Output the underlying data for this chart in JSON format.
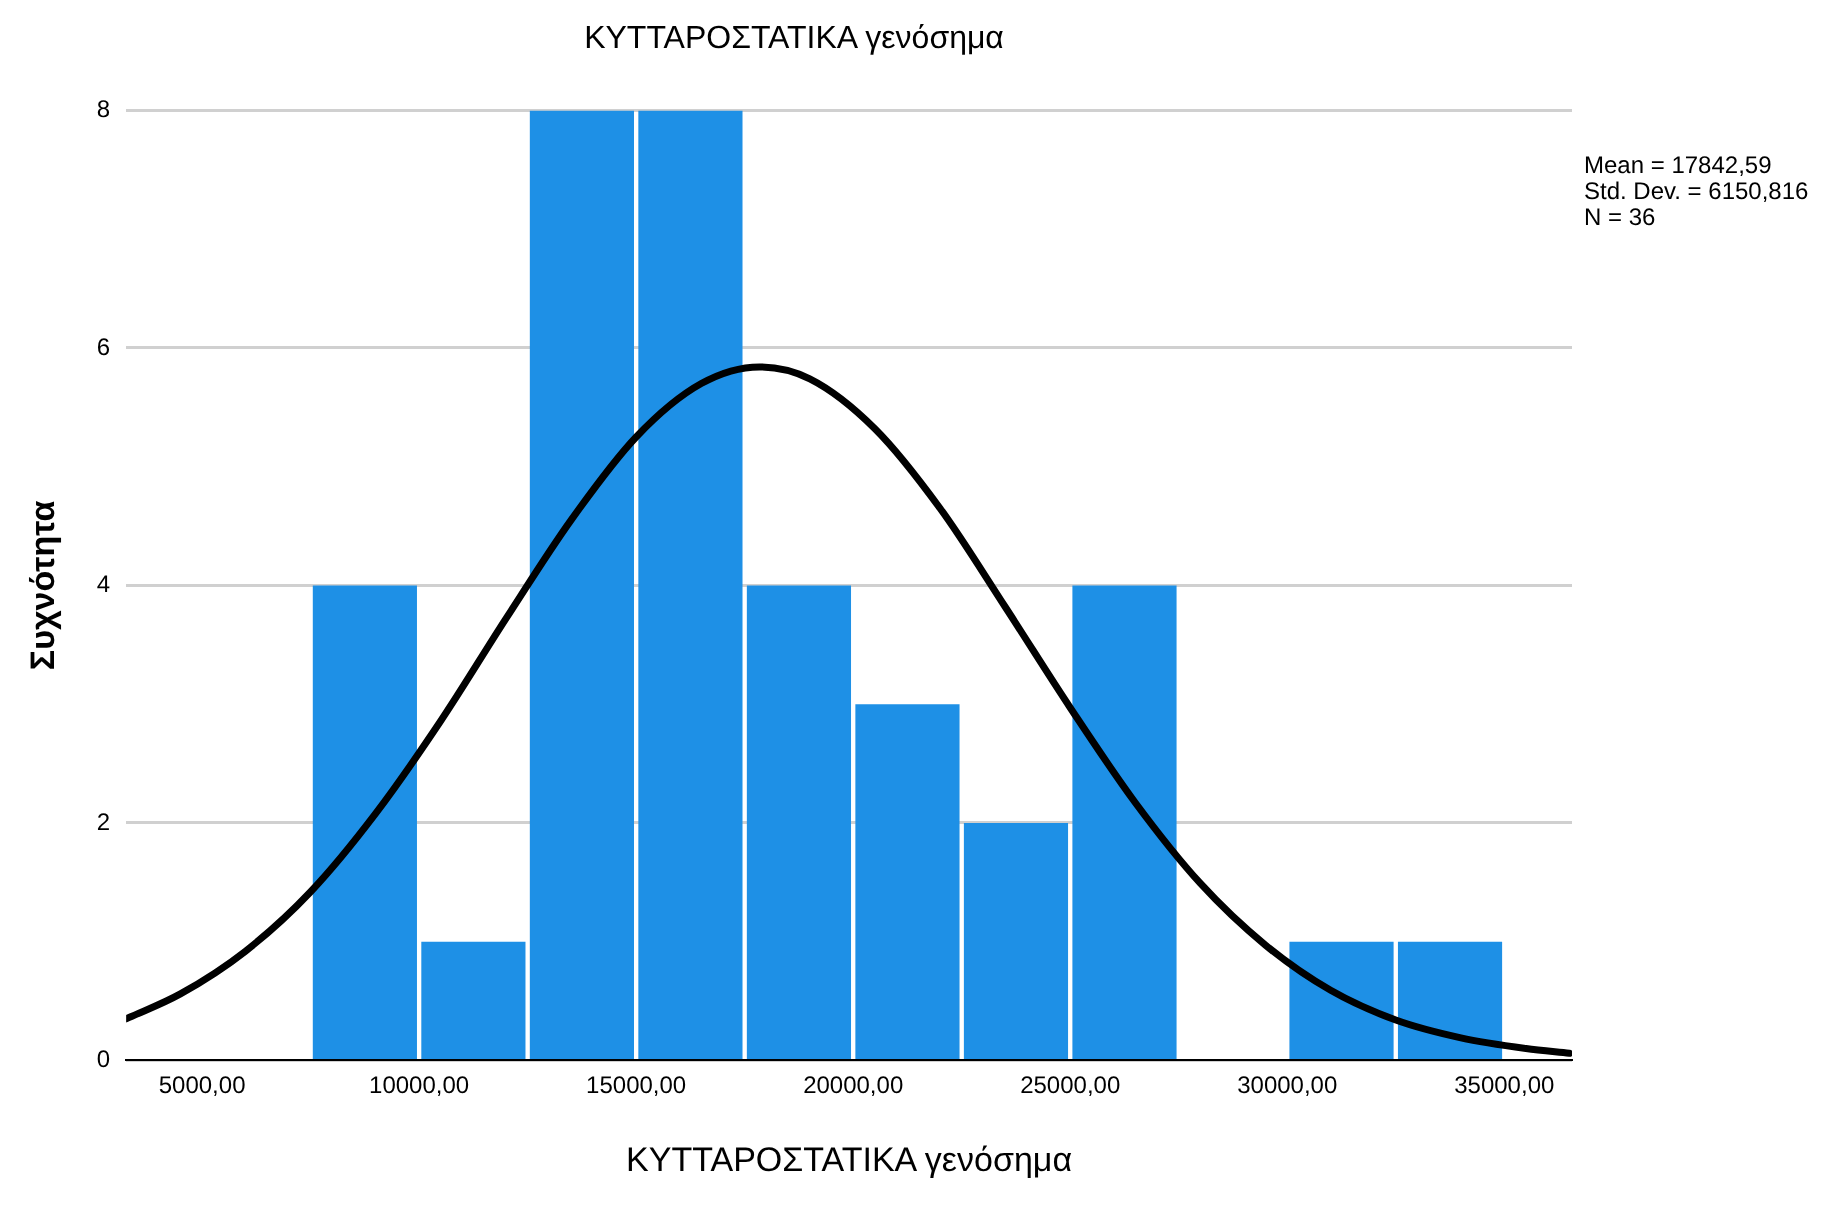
{
  "chart_data": {
    "type": "histogram",
    "title": "ΚΥΤΤΑΡΟΣΤΑΤΙΚΑ γενόσημα",
    "xlabel": "ΚΥΤΤΑΡΟΣΤΑΤΙΚΑ γενόσημα",
    "ylabel": "Συχνότητα",
    "bins": [
      7500,
      10000,
      12500,
      15000,
      17500,
      20000,
      22500,
      25000,
      27500,
      30000,
      32500,
      35000
    ],
    "values": [
      4,
      1,
      8,
      8,
      4,
      3,
      2,
      4,
      0,
      1,
      1
    ],
    "color": "#1e90e6",
    "series": [
      {
        "type": "line",
        "color": "#000000",
        "x": [
          3250,
          4500,
          6000,
          7500,
          9000,
          10500,
          12000,
          13500,
          15000,
          16500,
          17842.59,
          19000,
          20500,
          22000,
          23500,
          25000,
          26500,
          28000,
          29500,
          31000,
          32500,
          34000,
          35500,
          36500
        ],
        "values": [
          0.35,
          0.56,
          0.92,
          1.42,
          2.08,
          2.86,
          3.72,
          4.55,
          5.25,
          5.7,
          5.84,
          5.74,
          5.32,
          4.65,
          3.82,
          2.97,
          2.17,
          1.49,
          0.97,
          0.59,
          0.34,
          0.19,
          0.1,
          0.06
        ]
      }
    ],
    "xlim": [
      3250,
      36560
    ],
    "xticks": [
      {
        "value": 5000,
        "label": "5000,00"
      },
      {
        "value": 10000,
        "label": "10000,00"
      },
      {
        "value": 15000,
        "label": "15000,00"
      },
      {
        "value": 20000,
        "label": "20000,00"
      },
      {
        "value": 25000,
        "label": "25000,00"
      },
      {
        "value": 30000,
        "label": "30000,00"
      },
      {
        "value": 35000,
        "label": "35000,00"
      }
    ],
    "ylim": [
      0,
      8
    ],
    "yticks": [
      0,
      2,
      4,
      6,
      8
    ],
    "grid": "y",
    "legend": false,
    "marker": "none",
    "annotations": [
      "Mean = 17842,59",
      "Std. Dev. = 6150,816",
      "N = 36"
    ]
  }
}
